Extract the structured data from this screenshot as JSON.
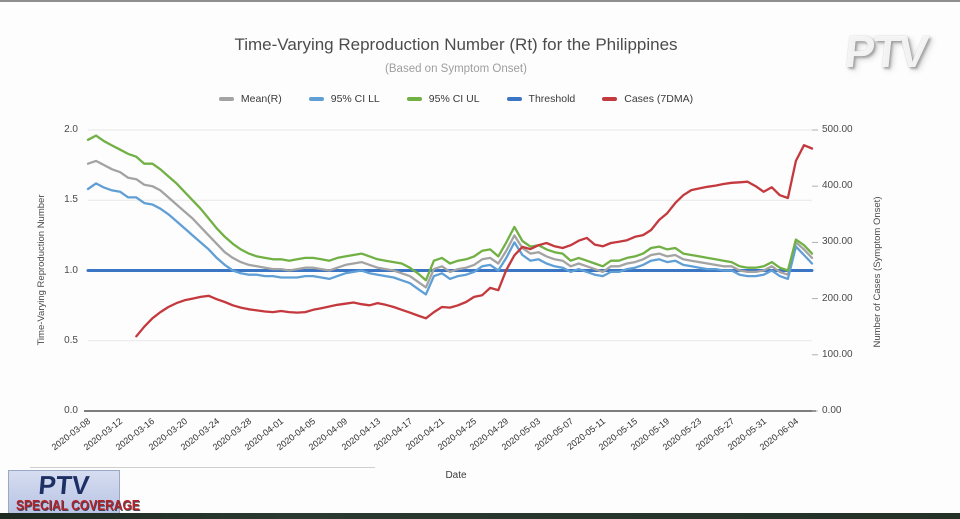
{
  "broadcast": {
    "watermark": "PTV",
    "bug": {
      "line1": "PTV",
      "line2": "SPECIAL COVERAGE"
    }
  },
  "chart_data": {
    "type": "line",
    "title": "Time-Varying Reproduction Number (Rt) for the Philippines",
    "subtitle": "(Based on Symptom Onset)",
    "xlabel": "Date",
    "ylabel_left": "Time-Varying Reproduction Number",
    "ylabel_right": "Number of Cases (Symptom Onset)",
    "ylim_left": [
      0.0,
      2.0
    ],
    "ylim_right": [
      0,
      500
    ],
    "yticks_left": [
      "0.0",
      "0.5",
      "1.0",
      "1.5",
      "2.0"
    ],
    "yticks_right": [
      "0.00",
      "100.00",
      "200.00",
      "300.00",
      "400.00",
      "500.00"
    ],
    "grid": true,
    "legend_position": "top",
    "x_unit": "days since 2020-03-08",
    "x_range_days": [
      0,
      90
    ],
    "x_tick_days": [
      0,
      4,
      8,
      12,
      16,
      20,
      24,
      28,
      32,
      36,
      40,
      44,
      48,
      52,
      56,
      60,
      64,
      68,
      72,
      76,
      80,
      84,
      88
    ],
    "x_tick_labels": [
      "2020-03-08",
      "2020-03-12",
      "2020-03-16",
      "2020-03-20",
      "2020-03-24",
      "2020-03-28",
      "2020-04-01",
      "2020-04-05",
      "2020-04-09",
      "2020-04-13",
      "2020-04-17",
      "2020-04-21",
      "2020-04-25",
      "2020-04-29",
      "2020-05-03",
      "2020-05-07",
      "2020-05-11",
      "2020-05-15",
      "2020-05-19",
      "2020-05-23",
      "2020-05-27",
      "2020-05-31",
      "2020-06-04"
    ],
    "series": [
      {
        "name": "Mean(R)",
        "axis": "left",
        "color": "#a3a3a3",
        "start_day": 0,
        "step_days": 1,
        "values": [
          1.76,
          1.78,
          1.75,
          1.72,
          1.7,
          1.66,
          1.65,
          1.61,
          1.6,
          1.57,
          1.52,
          1.47,
          1.42,
          1.37,
          1.31,
          1.25,
          1.19,
          1.13,
          1.09,
          1.06,
          1.04,
          1.03,
          1.02,
          1.01,
          1.01,
          1.0,
          1.01,
          1.02,
          1.02,
          1.01,
          1.0,
          1.02,
          1.04,
          1.05,
          1.06,
          1.04,
          1.02,
          1.01,
          1.0,
          0.98,
          0.96,
          0.92,
          0.88,
          1.01,
          1.03,
          0.99,
          1.01,
          1.02,
          1.04,
          1.08,
          1.09,
          1.05,
          1.14,
          1.25,
          1.16,
          1.12,
          1.13,
          1.1,
          1.08,
          1.07,
          1.03,
          1.05,
          1.03,
          1.01,
          0.99,
          1.03,
          1.03,
          1.05,
          1.06,
          1.08,
          1.11,
          1.12,
          1.1,
          1.11,
          1.08,
          1.07,
          1.06,
          1.05,
          1.04,
          1.03,
          1.03,
          1.0,
          0.99,
          0.99,
          1.0,
          1.03,
          0.99,
          0.97,
          1.2,
          1.15,
          1.09
        ]
      },
      {
        "name": "95% CI LL",
        "axis": "left",
        "color": "#5f9fd6",
        "start_day": 0,
        "step_days": 1,
        "values": [
          1.58,
          1.62,
          1.59,
          1.57,
          1.56,
          1.52,
          1.52,
          1.48,
          1.47,
          1.44,
          1.4,
          1.35,
          1.3,
          1.25,
          1.2,
          1.15,
          1.09,
          1.04,
          1.0,
          0.98,
          0.97,
          0.97,
          0.96,
          0.96,
          0.95,
          0.95,
          0.95,
          0.96,
          0.96,
          0.95,
          0.94,
          0.96,
          0.98,
          0.99,
          1.0,
          0.98,
          0.97,
          0.96,
          0.95,
          0.93,
          0.91,
          0.87,
          0.83,
          0.96,
          0.98,
          0.94,
          0.96,
          0.97,
          0.99,
          1.03,
          1.04,
          1.0,
          1.09,
          1.2,
          1.11,
          1.07,
          1.08,
          1.05,
          1.03,
          1.02,
          0.99,
          1.01,
          0.99,
          0.97,
          0.96,
          0.99,
          0.99,
          1.01,
          1.02,
          1.04,
          1.07,
          1.08,
          1.06,
          1.07,
          1.04,
          1.03,
          1.02,
          1.01,
          1.01,
          1.0,
          1.0,
          0.97,
          0.96,
          0.96,
          0.97,
          1.0,
          0.96,
          0.94,
          1.17,
          1.11,
          1.05
        ]
      },
      {
        "name": "95% CI UL",
        "axis": "left",
        "color": "#71b044",
        "start_day": 0,
        "step_days": 1,
        "values": [
          1.93,
          1.96,
          1.92,
          1.89,
          1.86,
          1.83,
          1.81,
          1.76,
          1.76,
          1.72,
          1.67,
          1.62,
          1.56,
          1.5,
          1.44,
          1.37,
          1.3,
          1.24,
          1.19,
          1.15,
          1.12,
          1.1,
          1.09,
          1.08,
          1.08,
          1.07,
          1.08,
          1.09,
          1.09,
          1.08,
          1.07,
          1.09,
          1.1,
          1.11,
          1.12,
          1.1,
          1.08,
          1.07,
          1.06,
          1.05,
          1.02,
          0.98,
          0.93,
          1.07,
          1.09,
          1.05,
          1.07,
          1.08,
          1.1,
          1.14,
          1.15,
          1.1,
          1.2,
          1.31,
          1.21,
          1.17,
          1.18,
          1.15,
          1.13,
          1.12,
          1.07,
          1.09,
          1.07,
          1.05,
          1.03,
          1.07,
          1.07,
          1.09,
          1.1,
          1.12,
          1.16,
          1.17,
          1.15,
          1.16,
          1.12,
          1.11,
          1.1,
          1.09,
          1.08,
          1.07,
          1.06,
          1.03,
          1.02,
          1.02,
          1.03,
          1.06,
          1.02,
          1.0,
          1.22,
          1.18,
          1.12
        ]
      },
      {
        "name": "Threshold",
        "axis": "left",
        "color": "#3b76c5",
        "constant": 1.0
      },
      {
        "name": "Cases (7DMA)",
        "axis": "right",
        "color": "#c4393e",
        "start_day": 6,
        "step_days": 1,
        "values": [
          133,
          150,
          165,
          176,
          185,
          192,
          197,
          200,
          203,
          205,
          199,
          194,
          188,
          184,
          181,
          179,
          177,
          176,
          178,
          176,
          175,
          176,
          180,
          183,
          186,
          189,
          191,
          193,
          190,
          188,
          192,
          189,
          185,
          180,
          175,
          170,
          165,
          176,
          185,
          184,
          188,
          194,
          203,
          206,
          219,
          215,
          251,
          277,
          292,
          288,
          295,
          299,
          293,
          290,
          295,
          303,
          308,
          296,
          293,
          299,
          301,
          304,
          310,
          313,
          322,
          340,
          352,
          370,
          384,
          393,
          396,
          399,
          401,
          404,
          406,
          407,
          408,
          400,
          390,
          398,
          384,
          379,
          445,
          473,
          467
        ]
      }
    ]
  }
}
